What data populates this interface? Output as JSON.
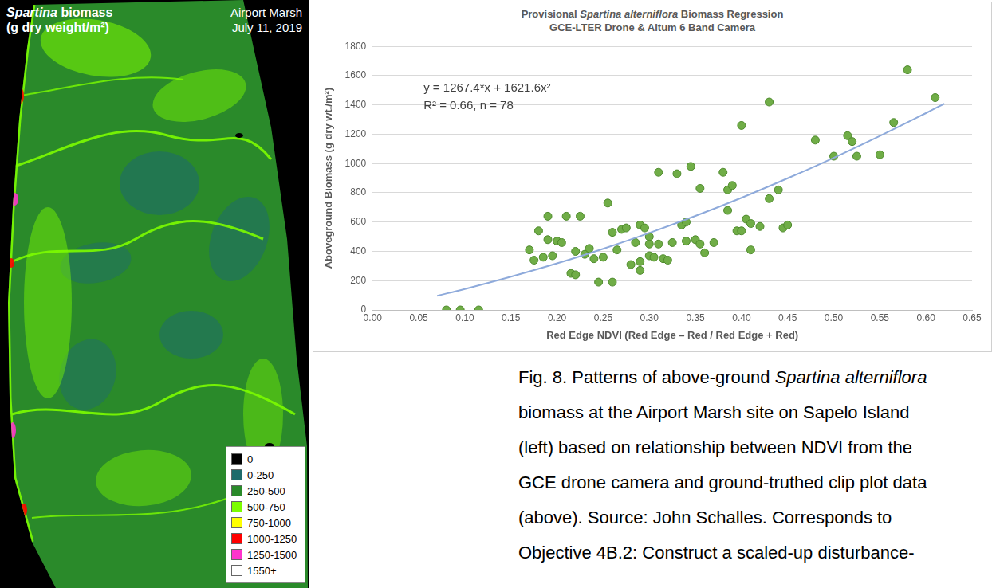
{
  "map": {
    "title": [
      "Spartina biomass",
      "(g dry weight/m²)"
    ],
    "title_italic": "Spartina",
    "site": [
      "Airport Marsh",
      "July 11, 2019"
    ],
    "legend": [
      {
        "label": "0",
        "color": "#000000"
      },
      {
        "label": "0-250",
        "color": "#1e6b6b"
      },
      {
        "label": "250-500",
        "color": "#2a8a2a"
      },
      {
        "label": "500-750",
        "color": "#7cfc00"
      },
      {
        "label": "750-1000",
        "color": "#ffff00"
      },
      {
        "label": "1000-1250",
        "color": "#ff0000"
      },
      {
        "label": "1250-1500",
        "color": "#ff33cc"
      },
      {
        "label": "1550+",
        "color": "#ffffff"
      }
    ]
  },
  "chart_data": {
    "type": "scatter",
    "title": "Provisional Spartina alterniflora Biomass Regression",
    "title_italic": "Spartina alterniflora",
    "subtitle": "GCE-LTER Drone & Altum 6 Band Camera",
    "x_label": "Red Edge NDVI (Red Edge – Red / Red Edge + Red)",
    "y_label": "Aboveground Biomass (g dry wt./m²)",
    "annotations": [
      "y = 1267.4*x + 1621.6x²",
      "R² = 0.66, n = 78"
    ],
    "xlim": [
      0,
      0.65
    ],
    "xticks": [
      {
        "value": 0,
        "label": "0.00"
      },
      {
        "value": 0.05,
        "label": "0.05"
      },
      {
        "value": 0.1,
        "label": "0.10"
      },
      {
        "value": 0.15,
        "label": "0.15"
      },
      {
        "value": 0.2,
        "label": "0.20"
      },
      {
        "value": 0.25,
        "label": "0.25"
      },
      {
        "value": 0.3,
        "label": "0.30"
      },
      {
        "value": 0.35,
        "label": "0.35"
      },
      {
        "value": 0.4,
        "label": "0.40"
      },
      {
        "value": 0.45,
        "label": "0.45"
      },
      {
        "value": 0.5,
        "label": "0.50"
      },
      {
        "value": 0.55,
        "label": "0.55"
      },
      {
        "value": 0.6,
        "label": "0.60"
      },
      {
        "value": 0.65,
        "label": "0.65"
      }
    ],
    "ylim": [
      0,
      1800
    ],
    "yticks": [
      0,
      200,
      400,
      600,
      800,
      1000,
      1200,
      1400,
      1600,
      1800
    ],
    "grid": "y",
    "series": [
      {
        "type": "scatter",
        "color": "#70ad47",
        "marker": "circle",
        "x": [
          0.08,
          0.095,
          0.115,
          0.17,
          0.175,
          0.18,
          0.185,
          0.19,
          0.19,
          0.195,
          0.2,
          0.205,
          0.21,
          0.215,
          0.22,
          0.22,
          0.225,
          0.23,
          0.235,
          0.24,
          0.245,
          0.25,
          0.255,
          0.26,
          0.265,
          0.27,
          0.275,
          0.28,
          0.285,
          0.29,
          0.29,
          0.29,
          0.295,
          0.3,
          0.3,
          0.305,
          0.31,
          0.31,
          0.315,
          0.32,
          0.325,
          0.33,
          0.335,
          0.34,
          0.34,
          0.345,
          0.35,
          0.355,
          0.355,
          0.36,
          0.37,
          0.38,
          0.385,
          0.385,
          0.39,
          0.395,
          0.4,
          0.4,
          0.405,
          0.41,
          0.41,
          0.42,
          0.43,
          0.43,
          0.44,
          0.445,
          0.45,
          0.48,
          0.5,
          0.515,
          0.52,
          0.525,
          0.55,
          0.565,
          0.58,
          0.61,
          0.3,
          0.26
        ],
        "values": [
          0,
          0,
          0,
          410,
          340,
          540,
          360,
          640,
          480,
          370,
          470,
          460,
          640,
          250,
          240,
          400,
          640,
          380,
          420,
          350,
          190,
          360,
          730,
          190,
          410,
          550,
          560,
          310,
          460,
          580,
          270,
          330,
          560,
          500,
          370,
          360,
          940,
          450,
          350,
          340,
          460,
          930,
          580,
          600,
          470,
          980,
          480,
          830,
          450,
          390,
          460,
          940,
          820,
          680,
          850,
          540,
          1260,
          540,
          620,
          590,
          410,
          570,
          1420,
          760,
          820,
          560,
          580,
          1160,
          1050,
          1190,
          1150,
          1050,
          1060,
          1280,
          1640,
          1450,
          450,
          530
        ]
      },
      {
        "type": "line",
        "color": "#8eaadb",
        "line_style": "solid",
        "x": [
          0.07,
          0.1,
          0.15,
          0.2,
          0.25,
          0.3,
          0.35,
          0.4,
          0.45,
          0.5,
          0.55,
          0.6,
          0.62
        ],
        "values": [
          97,
          143,
          227,
          318,
          418,
          526,
          642,
          766,
          899,
          1039,
          1188,
          1344,
          1409
        ]
      }
    ]
  },
  "caption": {
    "lines": [
      "Fig. 8. Patterns of above-ground Spartina alterniflora",
      "biomass at the Airport Marsh site on Sapelo Island",
      "(left) based on relationship between NDVI from the",
      "GCE drone camera and ground-truthed clip plot data",
      "(above). Source: John Schalles. Corresponds to",
      "Objective 4B.2: Construct a scaled-up disturbance-"
    ],
    "italic": "Spartina alterniflora"
  }
}
